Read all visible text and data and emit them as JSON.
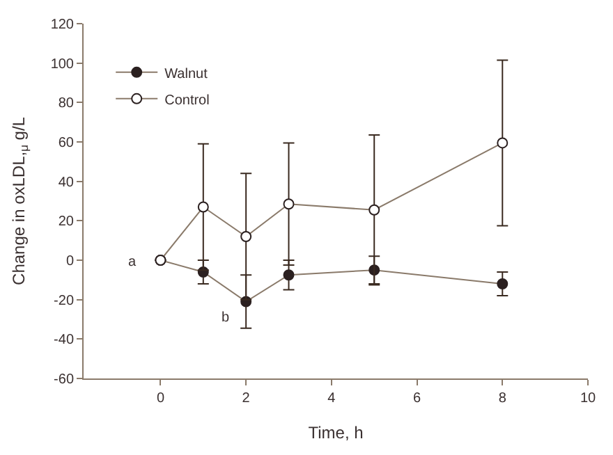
{
  "chart_data": {
    "type": "line",
    "xlabel": "Time, h",
    "ylabel": "Change in oxLDL,$_{μ}$ g/L",
    "x": [
      0,
      1,
      2,
      3,
      5,
      8
    ],
    "series": [
      {
        "name": "Walnut",
        "color": "#2b2020",
        "marker": "circle",
        "values": [
          0,
          -6,
          -21,
          -7.5,
          -5,
          -12
        ],
        "errors": [
          null,
          6,
          13.5,
          7.5,
          7,
          6
        ]
      },
      {
        "name": "Control",
        "color": "#ffffff",
        "marker": "circle",
        "values": [
          0,
          27,
          12,
          28.5,
          25.5,
          59.5
        ],
        "errors": [
          null,
          32,
          32,
          31,
          38,
          42
        ]
      }
    ],
    "xlim": [
      -1.8,
      10
    ],
    "xticks": [
      0,
      2,
      4,
      6,
      8,
      10
    ],
    "ylim": [
      -60,
      120
    ],
    "yticks": [
      -60,
      -40,
      -20,
      0,
      20,
      40,
      60,
      80,
      100,
      120
    ],
    "annotations": [
      "a",
      "b"
    ],
    "legend": "top left",
    "line_style": "solid"
  }
}
